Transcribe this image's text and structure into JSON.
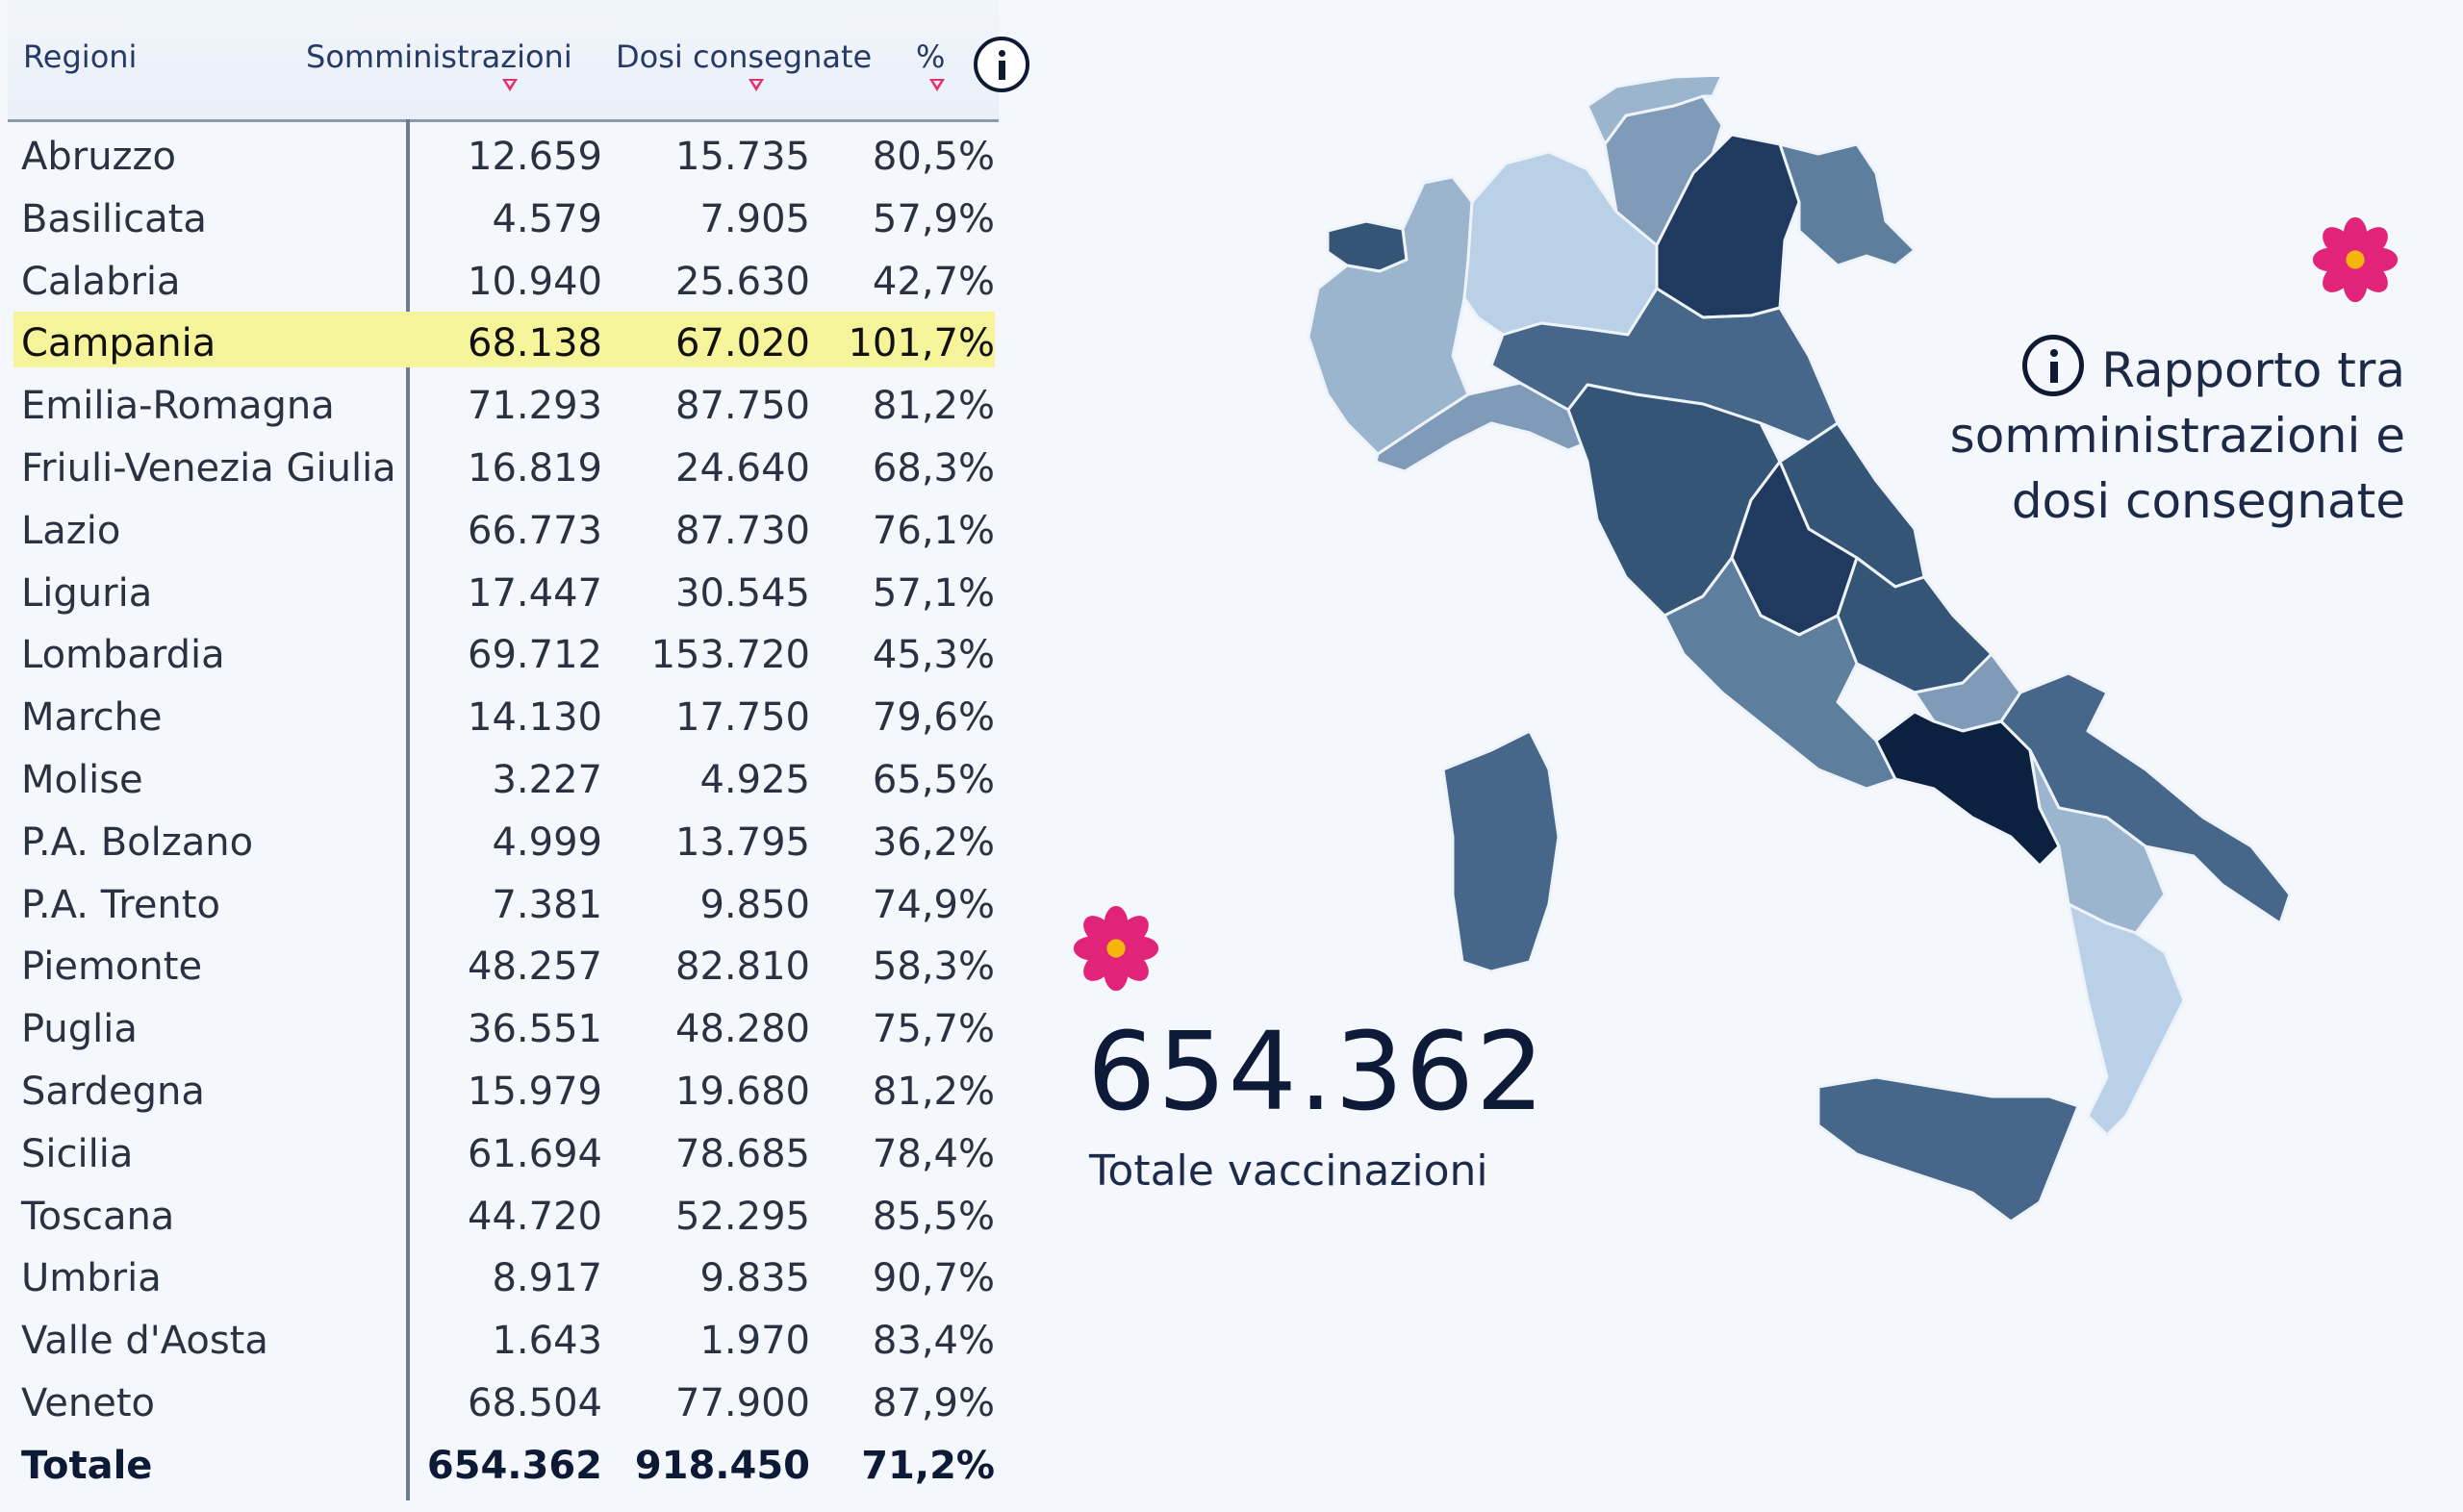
{
  "table": {
    "headers": {
      "region": "Regioni",
      "administrations": "Somministrazioni",
      "doses": "Dosi consegnate",
      "percent": "%"
    },
    "rows": [
      {
        "region": "Abruzzo",
        "administrations": "12.659",
        "doses": "15.735",
        "percent": "80,5%"
      },
      {
        "region": "Basilicata",
        "administrations": "4.579",
        "doses": "7.905",
        "percent": "57,9%"
      },
      {
        "region": "Calabria",
        "administrations": "10.940",
        "doses": "25.630",
        "percent": "42,7%"
      },
      {
        "region": "Campania",
        "administrations": "68.138",
        "doses": "67.020",
        "percent": "101,7%"
      },
      {
        "region": "Emilia-Romagna",
        "administrations": "71.293",
        "doses": "87.750",
        "percent": "81,2%"
      },
      {
        "region": "Friuli-Venezia Giulia",
        "administrations": "16.819",
        "doses": "24.640",
        "percent": "68,3%"
      },
      {
        "region": "Lazio",
        "administrations": "66.773",
        "doses": "87.730",
        "percent": "76,1%"
      },
      {
        "region": "Liguria",
        "administrations": "17.447",
        "doses": "30.545",
        "percent": "57,1%"
      },
      {
        "region": "Lombardia",
        "administrations": "69.712",
        "doses": "153.720",
        "percent": "45,3%"
      },
      {
        "region": "Marche",
        "administrations": "14.130",
        "doses": "17.750",
        "percent": "79,6%"
      },
      {
        "region": "Molise",
        "administrations": "3.227",
        "doses": "4.925",
        "percent": "65,5%"
      },
      {
        "region": "P.A. Bolzano",
        "administrations": "4.999",
        "doses": "13.795",
        "percent": "36,2%"
      },
      {
        "region": "P.A. Trento",
        "administrations": "7.381",
        "doses": "9.850",
        "percent": "74,9%"
      },
      {
        "region": "Piemonte",
        "administrations": "48.257",
        "doses": "82.810",
        "percent": "58,3%"
      },
      {
        "region": "Puglia",
        "administrations": "36.551",
        "doses": "48.280",
        "percent": "75,7%"
      },
      {
        "region": "Sardegna",
        "administrations": "15.979",
        "doses": "19.680",
        "percent": "81,2%"
      },
      {
        "region": "Sicilia",
        "administrations": "61.694",
        "doses": "78.685",
        "percent": "78,4%"
      },
      {
        "region": "Toscana",
        "administrations": "44.720",
        "doses": "52.295",
        "percent": "85,5%"
      },
      {
        "region": "Umbria",
        "administrations": "8.917",
        "doses": "9.835",
        "percent": "90,7%"
      },
      {
        "region": "Valle d'Aosta",
        "administrations": "1.643",
        "doses": "1.970",
        "percent": "83,4%"
      },
      {
        "region": "Veneto",
        "administrations": "68.504",
        "doses": "77.900",
        "percent": "87,9%"
      }
    ],
    "highlighted_region": "Campania",
    "total": {
      "region": "Totale",
      "administrations": "654.362",
      "doses": "918.450",
      "percent": "71,2%"
    }
  },
  "summary": {
    "total_value": "654.362",
    "total_label": "Totale vaccinazioni"
  },
  "legend": {
    "title_lines": [
      "Rapporto tra",
      "somministrazioni e",
      "dosi consegnate"
    ]
  },
  "icons": {
    "info": "info-icon",
    "sort": "sort-arrow-icon",
    "flower": "primula-flower-icon"
  },
  "colors": {
    "background": "#f4f7fc",
    "highlight": "#f6f49a",
    "sort_arrow": "#e0306e",
    "flower_petal": "#e2237a",
    "flower_center": "#f5b50a",
    "map_shades": [
      "#b9d0e6",
      "#9cb5cf",
      "#7f9bb8",
      "#5e7e9e",
      "#466789",
      "#355577",
      "#1f3a5e",
      "#0c2040"
    ]
  }
}
